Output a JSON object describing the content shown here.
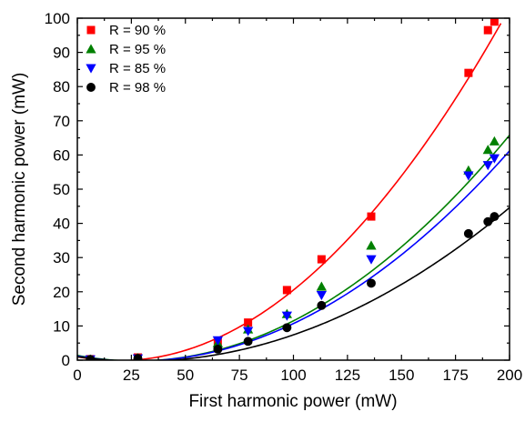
{
  "chart_data": {
    "type": "scatter",
    "xlabel": "First harmonic power (mW)",
    "ylabel": "Second harmonic power (mW)",
    "xlim": [
      0,
      200
    ],
    "ylim": [
      0,
      100
    ],
    "xticks": [
      0,
      25,
      50,
      75,
      100,
      125,
      150,
      175,
      200
    ],
    "yticks": [
      0,
      10,
      20,
      30,
      40,
      50,
      60,
      70,
      80,
      90,
      100
    ],
    "grid": false,
    "legend_position": "top-left",
    "series": [
      {
        "name": "R = 90 %",
        "marker": "square",
        "color": "#ff0000",
        "x": [
          6,
          28,
          65,
          79,
          97,
          113,
          136,
          181,
          190,
          193
        ],
        "y": [
          0.3,
          0.8,
          5.5,
          11,
          20.5,
          29.5,
          42,
          84,
          96.5,
          99
        ],
        "fit": {
          "model": "quadratic",
          "coefficients": [
            1.0,
            -0.12,
            0.00315
          ],
          "x_range": [
            0,
            196
          ]
        }
      },
      {
        "name": "R = 95 %",
        "marker": "triangle-up",
        "color": "#008000",
        "x": [
          6,
          28,
          65,
          79,
          97,
          113,
          136,
          181,
          190,
          193
        ],
        "y": [
          0.2,
          0.6,
          5,
          9,
          13.5,
          21.5,
          33.5,
          55.5,
          61.5,
          64
        ],
        "fit": {
          "model": "quadratic",
          "coefficients": [
            1.4,
            -0.12,
            0.00221
          ],
          "x_range": [
            0,
            200
          ]
        }
      },
      {
        "name": "R = 85 %",
        "marker": "triangle-down",
        "color": "#0000ff",
        "x": [
          6,
          28,
          65,
          79,
          97,
          113,
          136,
          181,
          190,
          193
        ],
        "y": [
          0.2,
          0.5,
          5.8,
          8.5,
          13,
          19,
          29.5,
          54,
          57,
          59
        ],
        "fit": {
          "model": "quadratic",
          "coefficients": [
            1.2,
            -0.11,
            0.00205
          ],
          "x_range": [
            0,
            200
          ]
        }
      },
      {
        "name": "R = 98 %",
        "marker": "circle",
        "color": "#000000",
        "x": [
          6,
          28,
          65,
          79,
          97,
          113,
          136,
          181,
          190,
          193
        ],
        "y": [
          0.2,
          0.5,
          3.2,
          5.5,
          9.5,
          16,
          22.5,
          37,
          40.5,
          42
        ],
        "fit": {
          "model": "quadratic",
          "coefficients": [
            1.0,
            -0.09,
            0.00154
          ],
          "x_range": [
            0,
            200
          ]
        }
      }
    ]
  }
}
